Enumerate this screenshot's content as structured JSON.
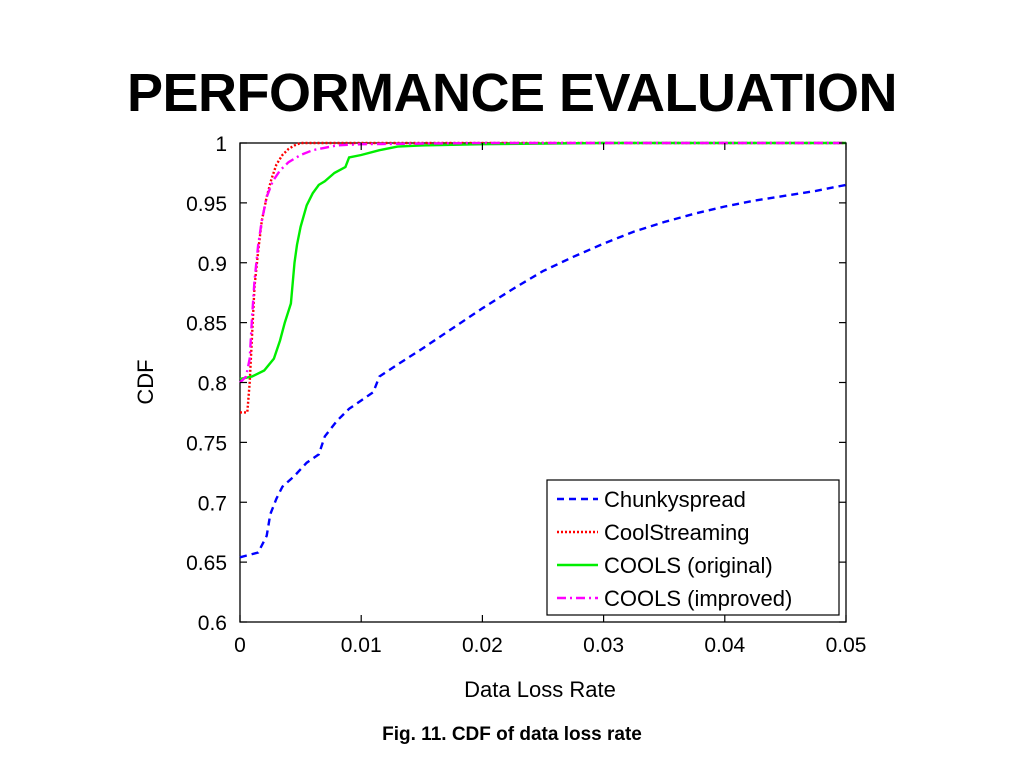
{
  "slide": {
    "title": "PERFORMANCE EVALUATION",
    "caption": "Fig. 11. CDF of data loss rate"
  },
  "chart_data": {
    "type": "line",
    "xlabel": "Data Loss Rate",
    "ylabel": "CDF",
    "xlim": [
      0,
      0.05
    ],
    "ylim": [
      0.6,
      1
    ],
    "xticks": [
      0,
      0.01,
      0.02,
      0.03,
      0.04,
      0.05
    ],
    "xtick_labels": [
      "0",
      "0.01",
      "0.02",
      "0.03",
      "0.04",
      "0.05"
    ],
    "yticks": [
      0.6,
      0.65,
      0.7,
      0.75,
      0.8,
      0.85,
      0.9,
      0.95,
      1
    ],
    "ytick_labels": [
      "0.6",
      "0.65",
      "0.7",
      "0.75",
      "0.8",
      "0.85",
      "0.9",
      "0.95",
      "1"
    ],
    "grid": false,
    "legend_position": "bottom-right",
    "series": [
      {
        "name": "Chunkyspread",
        "color": "#0000ff",
        "style": "dashed",
        "x": [
          0,
          0.0015,
          0.0022,
          0.0025,
          0.003,
          0.0035,
          0.0045,
          0.0055,
          0.0065,
          0.007,
          0.008,
          0.009,
          0.01,
          0.011,
          0.0115,
          0.013,
          0.015,
          0.0175,
          0.02,
          0.0225,
          0.025,
          0.0275,
          0.03,
          0.0325,
          0.035,
          0.0375,
          0.04,
          0.0425,
          0.045,
          0.0475,
          0.05
        ],
        "y": [
          0.654,
          0.658,
          0.672,
          0.69,
          0.703,
          0.713,
          0.722,
          0.733,
          0.74,
          0.755,
          0.768,
          0.778,
          0.785,
          0.792,
          0.805,
          0.815,
          0.828,
          0.845,
          0.862,
          0.878,
          0.893,
          0.905,
          0.916,
          0.926,
          0.934,
          0.941,
          0.947,
          0.952,
          0.956,
          0.96,
          0.965
        ]
      },
      {
        "name": "CoolStreaming",
        "color": "#ff0000",
        "style": "dotted",
        "x": [
          0,
          0.0006,
          0.0008,
          0.001,
          0.0012,
          0.0015,
          0.0018,
          0.0022,
          0.0026,
          0.003,
          0.0035,
          0.004,
          0.0045,
          0.005,
          0.05
        ],
        "y": [
          0.775,
          0.775,
          0.8,
          0.84,
          0.88,
          0.91,
          0.935,
          0.955,
          0.97,
          0.982,
          0.99,
          0.995,
          0.998,
          1.0,
          1.0
        ]
      },
      {
        "name": "COOLS (original)",
        "color": "#00ee00",
        "style": "solid",
        "x": [
          0,
          0.001,
          0.002,
          0.0028,
          0.0033,
          0.0037,
          0.0042,
          0.0045,
          0.0047,
          0.005,
          0.0055,
          0.006,
          0.0065,
          0.007,
          0.0078,
          0.0087,
          0.009,
          0.01,
          0.0115,
          0.013,
          0.015,
          0.02,
          0.03,
          0.05
        ],
        "y": [
          0.803,
          0.805,
          0.81,
          0.82,
          0.835,
          0.85,
          0.866,
          0.9,
          0.915,
          0.93,
          0.948,
          0.958,
          0.965,
          0.968,
          0.975,
          0.98,
          0.988,
          0.99,
          0.994,
          0.997,
          0.998,
          0.999,
          1.0,
          1.0
        ]
      },
      {
        "name": "COOLS (improved)",
        "color": "#ff00ff",
        "style": "dashdot",
        "x": [
          0,
          0.0005,
          0.0008,
          0.001,
          0.0012,
          0.0015,
          0.0018,
          0.0022,
          0.0027,
          0.0033,
          0.004,
          0.005,
          0.006,
          0.007,
          0.008,
          0.01,
          0.02,
          0.05
        ],
        "y": [
          0.8,
          0.805,
          0.82,
          0.855,
          0.885,
          0.915,
          0.935,
          0.955,
          0.968,
          0.977,
          0.984,
          0.99,
          0.994,
          0.996,
          0.998,
          0.999,
          1.0,
          1.0
        ]
      }
    ]
  }
}
